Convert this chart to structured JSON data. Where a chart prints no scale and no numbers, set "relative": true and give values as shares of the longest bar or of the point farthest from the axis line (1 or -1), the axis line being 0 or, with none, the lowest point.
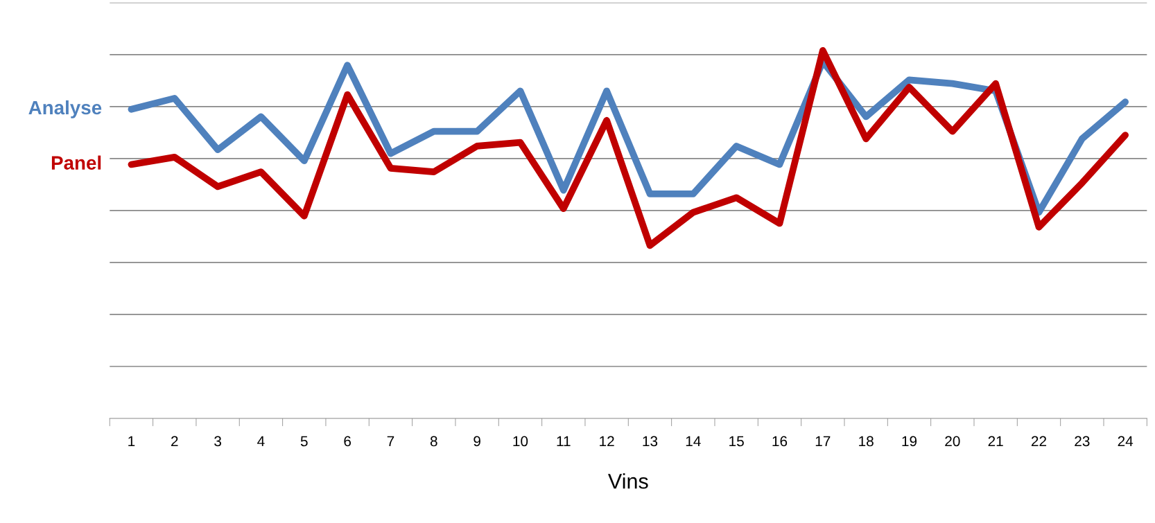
{
  "chart_data": {
    "type": "line",
    "xlabel": "Vins",
    "relative": true,
    "grid": "y",
    "legend": "left",
    "marker": "none",
    "line_style": "solid",
    "categories": [
      "1",
      "2",
      "3",
      "4",
      "5",
      "6",
      "7",
      "8",
      "9",
      "10",
      "11",
      "12",
      "13",
      "14",
      "15",
      "16",
      "17",
      "18",
      "19",
      "20",
      "21",
      "22",
      "23",
      "24"
    ],
    "series": [
      {
        "name": "Analyse",
        "color": "#4f81bd",
        "values": [
          0.84,
          0.87,
          0.73,
          0.82,
          0.7,
          0.96,
          0.72,
          0.78,
          0.78,
          0.89,
          0.62,
          0.89,
          0.61,
          0.61,
          0.74,
          0.69,
          0.97,
          0.82,
          0.92,
          0.91,
          0.89,
          0.56,
          0.76,
          0.86
        ]
      },
      {
        "name": "Panel",
        "color": "#c00000",
        "values": [
          0.69,
          0.71,
          0.63,
          0.67,
          0.55,
          0.88,
          0.68,
          0.67,
          0.74,
          0.75,
          0.57,
          0.81,
          0.47,
          0.56,
          0.6,
          0.53,
          1.0,
          0.76,
          0.9,
          0.78,
          0.91,
          0.52,
          0.64,
          0.77
        ]
      }
    ]
  }
}
